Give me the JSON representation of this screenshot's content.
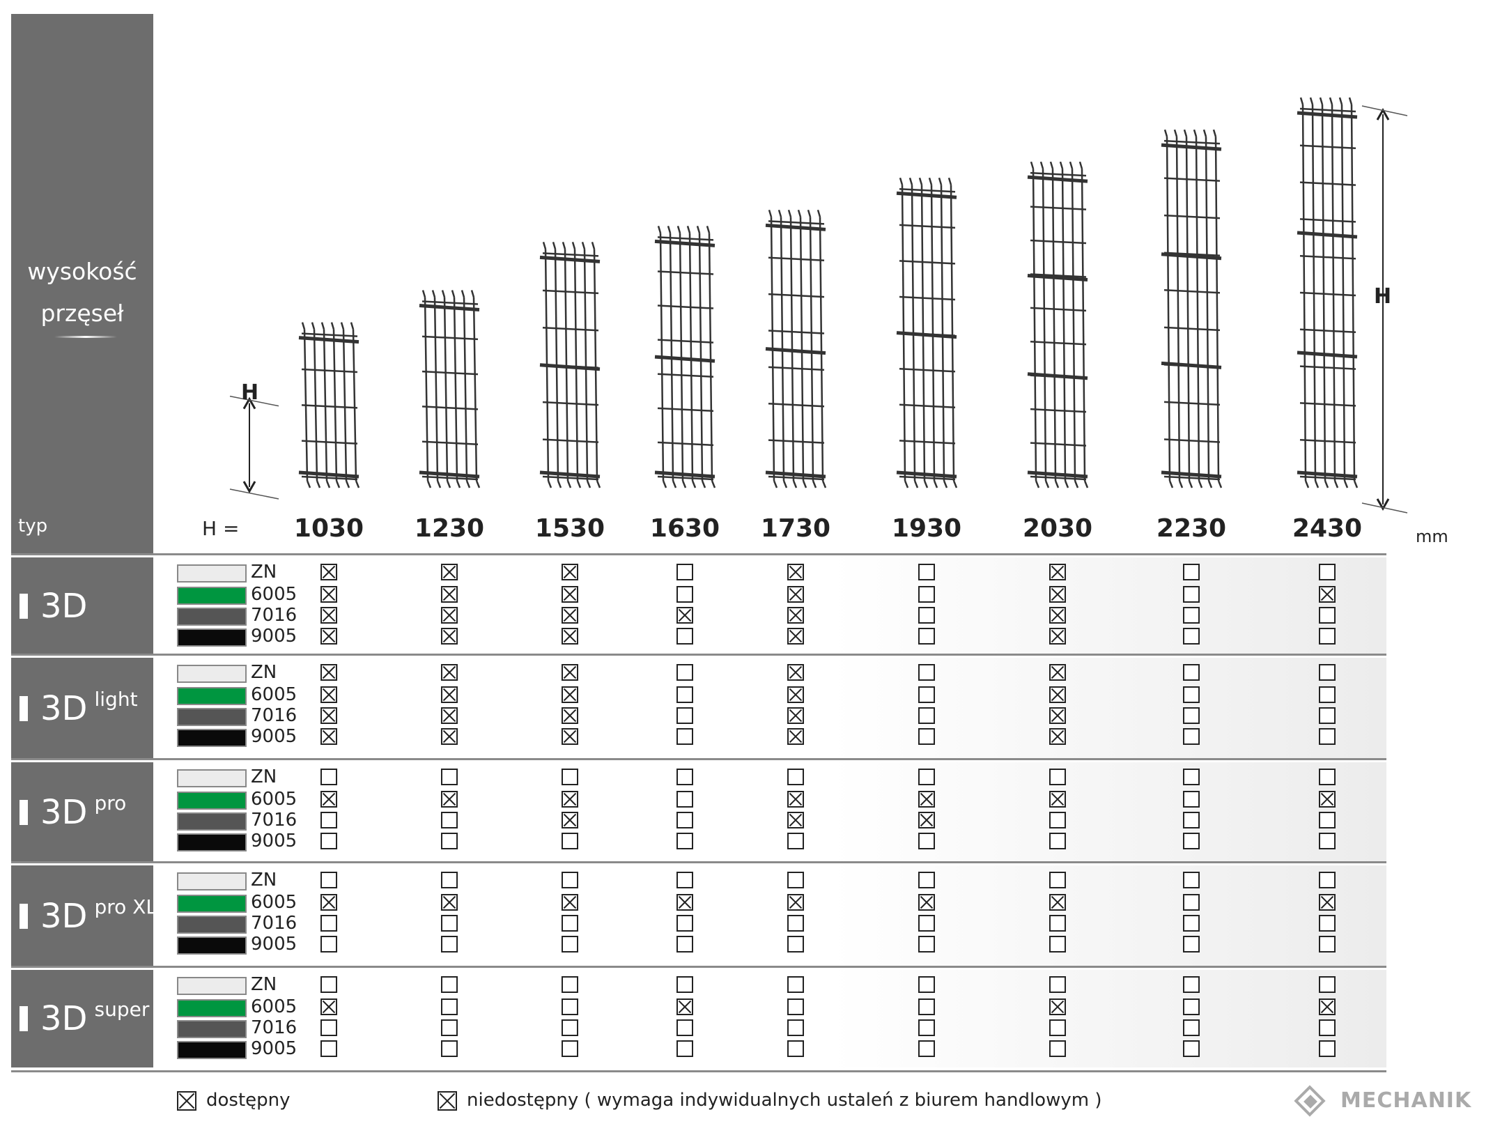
{
  "sidebar": {
    "title_line1": "wysokość",
    "title_line2": "przęseł",
    "typ_label": "typ"
  },
  "header": {
    "h_prefix": "H =",
    "unit": "mm",
    "dim_label": "H"
  },
  "heights": [
    "1030",
    "1230",
    "1530",
    "1630",
    "1730",
    "1930",
    "2030",
    "2230",
    "2430"
  ],
  "colors": [
    {
      "code": "ZN",
      "hex": "#ececec"
    },
    {
      "code": "6005",
      "hex": "#009640"
    },
    {
      "code": "7016",
      "hex": "#555555"
    },
    {
      "code": "9005",
      "hex": "#0a0a0a"
    }
  ],
  "types": [
    {
      "name": "3D",
      "sup": "",
      "avail": [
        [
          1,
          1,
          1,
          0,
          1,
          0,
          1,
          0,
          0
        ],
        [
          1,
          1,
          1,
          0,
          1,
          0,
          1,
          0,
          1
        ],
        [
          1,
          1,
          1,
          1,
          1,
          0,
          1,
          0,
          0
        ],
        [
          1,
          1,
          1,
          0,
          1,
          0,
          1,
          0,
          0
        ]
      ]
    },
    {
      "name": "3D",
      "sup": "light",
      "avail": [
        [
          1,
          1,
          1,
          0,
          1,
          0,
          1,
          0,
          0
        ],
        [
          1,
          1,
          1,
          0,
          1,
          0,
          1,
          0,
          0
        ],
        [
          1,
          1,
          1,
          0,
          1,
          0,
          1,
          0,
          0
        ],
        [
          1,
          1,
          1,
          0,
          1,
          0,
          1,
          0,
          0
        ]
      ]
    },
    {
      "name": "3D",
      "sup": "pro",
      "avail": [
        [
          0,
          0,
          0,
          0,
          0,
          0,
          0,
          0,
          0
        ],
        [
          1,
          1,
          1,
          0,
          1,
          1,
          1,
          0,
          1
        ],
        [
          0,
          0,
          1,
          0,
          1,
          1,
          0,
          0,
          0
        ],
        [
          0,
          0,
          0,
          0,
          0,
          0,
          0,
          0,
          0
        ]
      ]
    },
    {
      "name": "3D",
      "sup": "pro XL",
      "avail": [
        [
          0,
          0,
          0,
          0,
          0,
          0,
          0,
          0,
          0
        ],
        [
          1,
          1,
          1,
          1,
          1,
          1,
          1,
          0,
          1
        ],
        [
          0,
          0,
          0,
          0,
          0,
          0,
          0,
          0,
          0
        ],
        [
          0,
          0,
          0,
          0,
          0,
          0,
          0,
          0,
          0
        ]
      ]
    },
    {
      "name": "3D",
      "sup": "super",
      "avail": [
        [
          0,
          0,
          0,
          0,
          0,
          0,
          0,
          0,
          0
        ],
        [
          1,
          0,
          0,
          1,
          0,
          0,
          1,
          0,
          1
        ],
        [
          0,
          0,
          0,
          0,
          0,
          0,
          0,
          0,
          0
        ],
        [
          0,
          0,
          0,
          0,
          0,
          0,
          0,
          0,
          0
        ]
      ]
    }
  ],
  "legend": {
    "available": "dostępny",
    "unavailable": "niedostępny ( wymaga indywidualnych ustaleń z biurem handlowym )"
  },
  "brand": {
    "name": "MECHANIK"
  }
}
